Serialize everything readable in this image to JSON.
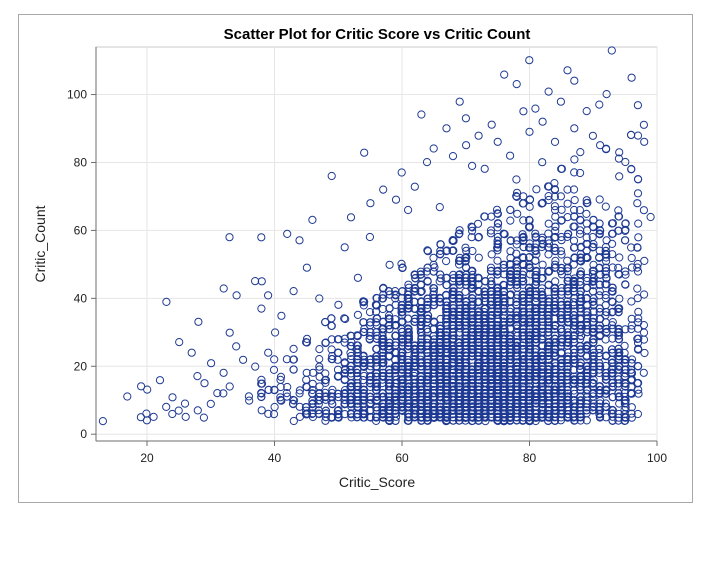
{
  "chart_data": {
    "type": "scatter",
    "title": "Scatter Plot for Critic Score vs Critic Count",
    "xlabel": "Critic_Score",
    "ylabel": "Critic_Count",
    "xlim": [
      12,
      100
    ],
    "ylim": [
      -2,
      114
    ],
    "xticks": [
      20,
      40,
      60,
      80,
      100
    ],
    "yticks": [
      0,
      20,
      40,
      60,
      80,
      100
    ],
    "grid": true,
    "marker_color": "#1f3a93",
    "series": [
      {
        "points": [
          [
            13,
            4
          ],
          [
            17,
            11
          ],
          [
            19,
            14
          ],
          [
            19,
            5
          ],
          [
            20,
            13
          ],
          [
            20,
            6
          ],
          [
            20,
            4
          ],
          [
            21,
            5
          ],
          [
            22,
            16
          ],
          [
            23,
            39
          ],
          [
            23,
            8
          ],
          [
            24,
            11
          ],
          [
            24,
            6
          ],
          [
            25,
            27
          ],
          [
            25,
            7
          ],
          [
            26,
            9
          ],
          [
            26,
            5
          ],
          [
            27,
            24
          ],
          [
            28,
            33
          ],
          [
            28,
            17
          ],
          [
            28,
            7
          ],
          [
            29,
            15
          ],
          [
            30,
            21
          ],
          [
            30,
            9
          ],
          [
            31,
            12
          ],
          [
            32,
            43
          ],
          [
            32,
            18
          ],
          [
            33,
            58
          ],
          [
            33,
            30
          ],
          [
            33,
            14
          ],
          [
            34,
            41
          ],
          [
            34,
            26
          ],
          [
            35,
            22
          ],
          [
            36,
            10
          ],
          [
            37,
            45
          ],
          [
            37,
            20
          ],
          [
            38,
            58
          ],
          [
            38,
            45
          ],
          [
            38,
            37
          ],
          [
            38,
            16
          ],
          [
            39,
            41
          ],
          [
            39,
            24
          ],
          [
            40,
            30
          ],
          [
            40,
            19
          ],
          [
            41,
            35
          ],
          [
            42,
            59
          ],
          [
            42,
            22
          ],
          [
            43,
            42
          ],
          [
            44,
            57
          ],
          [
            45,
            28
          ],
          [
            45,
            49
          ],
          [
            46,
            63
          ],
          [
            47,
            40
          ],
          [
            48,
            33
          ],
          [
            49,
            76
          ],
          [
            50,
            38
          ],
          [
            51,
            55
          ],
          [
            52,
            64
          ],
          [
            53,
            46
          ],
          [
            54,
            83
          ],
          [
            55,
            58
          ],
          [
            55,
            68
          ],
          [
            57,
            72
          ],
          [
            58,
            50
          ],
          [
            59,
            69
          ],
          [
            60,
            77
          ],
          [
            61,
            66
          ],
          [
            62,
            73
          ],
          [
            62,
            47
          ],
          [
            63,
            94
          ],
          [
            64,
            80
          ],
          [
            65,
            84
          ],
          [
            66,
            67
          ],
          [
            67,
            90
          ],
          [
            68,
            82
          ],
          [
            69,
            98
          ],
          [
            70,
            85
          ],
          [
            70,
            93
          ],
          [
            71,
            79
          ],
          [
            72,
            88
          ],
          [
            73,
            78
          ],
          [
            74,
            91
          ],
          [
            75,
            86
          ],
          [
            76,
            106
          ],
          [
            77,
            82
          ],
          [
            78,
            103
          ],
          [
            78,
            75
          ],
          [
            79,
            95
          ],
          [
            80,
            110
          ],
          [
            80,
            89
          ],
          [
            81,
            96
          ],
          [
            82,
            80
          ],
          [
            82,
            92
          ],
          [
            83,
            101
          ],
          [
            84,
            86
          ],
          [
            85,
            98
          ],
          [
            86,
            107
          ],
          [
            87,
            104
          ],
          [
            87,
            90
          ],
          [
            88,
            83
          ],
          [
            89,
            95
          ],
          [
            90,
            88
          ],
          [
            91,
            97
          ],
          [
            92,
            100
          ],
          [
            93,
            113
          ],
          [
            94,
            83
          ],
          [
            95,
            80
          ],
          [
            96,
            105
          ],
          [
            97,
            97
          ],
          [
            98,
            91
          ],
          [
            98,
            86
          ],
          [
            95,
            26
          ],
          [
            96,
            22
          ],
          [
            97,
            20
          ],
          [
            98,
            24
          ],
          [
            98,
            18
          ],
          [
            99,
            64
          ],
          [
            97,
            34
          ],
          [
            96,
            31
          ],
          [
            97,
            48
          ],
          [
            96,
            55
          ],
          [
            98,
            66
          ],
          [
            97,
            62
          ]
        ],
        "dense": {
          "x_from": 20,
          "x_to": 98,
          "count": 5400,
          "note": "bulk point cloud following the visible density pattern"
        }
      }
    ]
  }
}
